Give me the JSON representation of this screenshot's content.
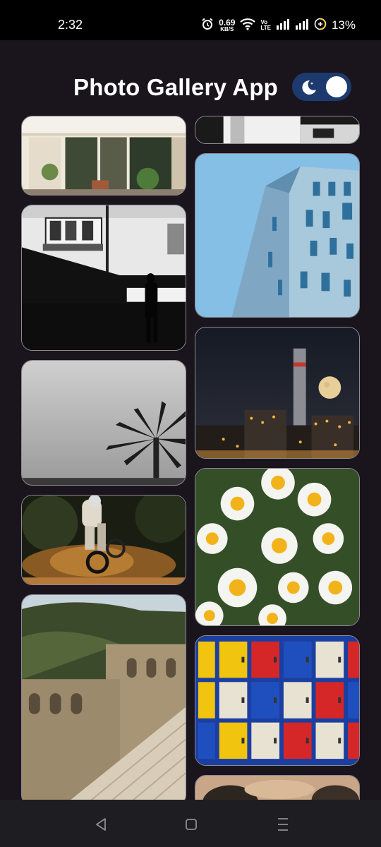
{
  "status_bar": {
    "time": "2:32",
    "net_speed_value": "0.69",
    "net_speed_unit": "KB/S",
    "volte_top": "Vo",
    "volte_bottom": "LTE",
    "battery": "13%"
  },
  "header": {
    "title": "Photo Gallery App",
    "theme_toggle_icon": "moon-icon",
    "toggle_color": "#1d3a6e"
  },
  "gallery": {
    "left_column": [
      "storefront-photo",
      "shadow-street-photo",
      "palm-tree-photo",
      "motocross-photo",
      "ancient-theater-photo"
    ],
    "right_column": [
      "dark-building-photo",
      "blue-building-photo",
      "moon-factory-photo",
      "daisies-photo",
      "lockers-photo",
      "blurred-face-photo"
    ]
  },
  "nav_bar": {
    "back_icon": "back-triangle-icon",
    "home_icon": "home-square-icon",
    "recents_icon": "menu-lines-icon"
  }
}
